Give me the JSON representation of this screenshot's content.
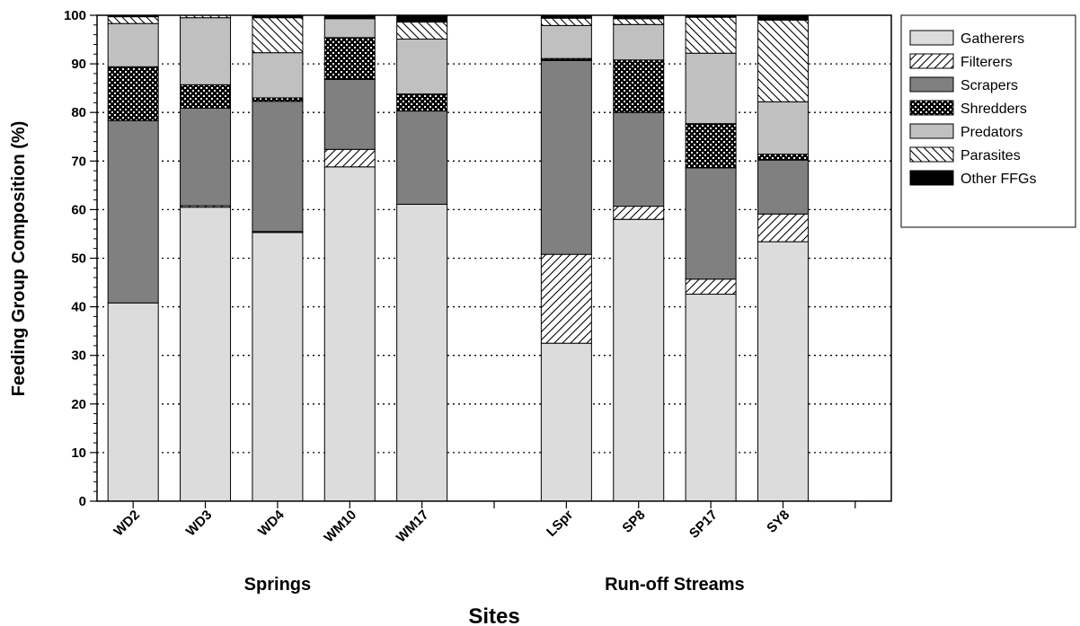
{
  "chart_data": {
    "type": "bar",
    "stacked": true,
    "xlabel": "Sites",
    "ylabel": "Feeding Group Composition (%)",
    "ylim": [
      0,
      100
    ],
    "yticks": [
      0,
      10,
      20,
      30,
      40,
      50,
      60,
      70,
      80,
      90,
      100
    ],
    "grid": "horizontal dotted",
    "legend_position": "right",
    "groups": [
      {
        "label": "Springs",
        "categories": [
          "WD2",
          "WD3",
          "WD4",
          "WM10",
          "WM17"
        ]
      },
      {
        "label": "Run-off Streams",
        "categories": [
          "LSpr",
          "SP8",
          "SP17",
          "SY8"
        ]
      }
    ],
    "categories": [
      "WD2",
      "WD3",
      "WD4",
      "WM10",
      "WM17",
      "LSpr",
      "SP8",
      "SP17",
      "SY8"
    ],
    "series": [
      {
        "name": "Gatherers",
        "fill": "#dcdcdc",
        "pattern": "solid",
        "values": [
          40.8,
          60.5,
          55.3,
          68.8,
          61.1,
          32.5,
          58.0,
          42.6,
          53.4
        ]
      },
      {
        "name": "Filterers",
        "fill": "#ffffff",
        "pattern": "diagonal-forward",
        "values": [
          0.0,
          0.3,
          0.2,
          3.6,
          0.0,
          18.3,
          2.7,
          3.1,
          5.7
        ]
      },
      {
        "name": "Scrapers",
        "fill": "#808080",
        "pattern": "solid",
        "values": [
          37.5,
          20.1,
          26.8,
          14.4,
          19.2,
          39.9,
          19.3,
          22.9,
          11.1
        ]
      },
      {
        "name": "Shredders",
        "fill": "#000000",
        "pattern": "crosshatch",
        "values": [
          11.1,
          4.8,
          0.7,
          8.6,
          3.5,
          0.4,
          10.8,
          9.1,
          1.2
        ]
      },
      {
        "name": "Predators",
        "fill": "#c0c0c0",
        "pattern": "solid",
        "values": [
          8.9,
          13.8,
          9.3,
          3.9,
          11.3,
          6.8,
          7.3,
          14.5,
          10.8
        ]
      },
      {
        "name": "Parasites",
        "fill": "#ffffff",
        "pattern": "diagonal-back",
        "values": [
          1.4,
          0.5,
          7.2,
          0.0,
          3.5,
          1.5,
          1.2,
          7.4,
          16.8
        ]
      },
      {
        "name": "Other FFGs",
        "fill": "#000000",
        "pattern": "solid",
        "values": [
          0.3,
          0.0,
          0.5,
          0.7,
          1.4,
          0.6,
          0.7,
          0.4,
          1.0
        ]
      }
    ]
  }
}
